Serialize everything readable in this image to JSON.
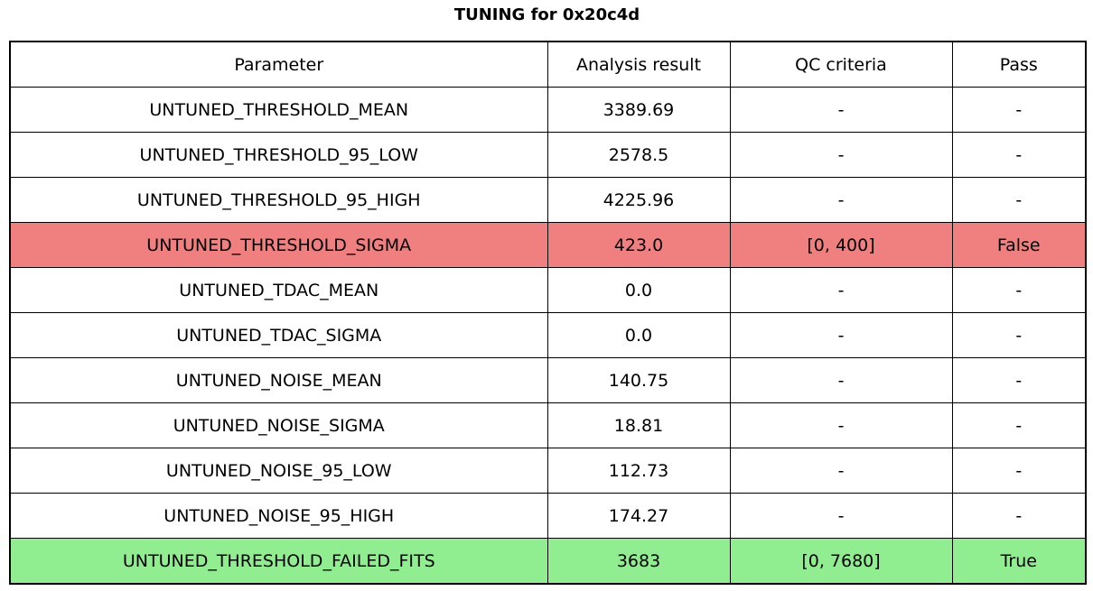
{
  "page_title": "TUNING for 0x20c4d",
  "colors": {
    "fail_row": "#F08080",
    "pass_row": "#90EE90",
    "border": "#000000",
    "background": "#FFFFFF"
  },
  "chart_data": {
    "type": "table",
    "title": "TUNING for 0x20c4d",
    "columns": [
      "Parameter",
      "Analysis result",
      "QC criteria",
      "Pass"
    ],
    "rows": [
      {
        "parameter": "UNTUNED_THRESHOLD_MEAN",
        "analysis_result": "3389.69",
        "qc_criteria": "-",
        "pass": "-",
        "status": "normal"
      },
      {
        "parameter": "UNTUNED_THRESHOLD_95_LOW",
        "analysis_result": "2578.5",
        "qc_criteria": "-",
        "pass": "-",
        "status": "normal"
      },
      {
        "parameter": "UNTUNED_THRESHOLD_95_HIGH",
        "analysis_result": "4225.96",
        "qc_criteria": "-",
        "pass": "-",
        "status": "normal"
      },
      {
        "parameter": "UNTUNED_THRESHOLD_SIGMA",
        "analysis_result": "423.0",
        "qc_criteria": "[0, 400]",
        "pass": "False",
        "status": "fail"
      },
      {
        "parameter": "UNTUNED_TDAC_MEAN",
        "analysis_result": "0.0",
        "qc_criteria": "-",
        "pass": "-",
        "status": "normal"
      },
      {
        "parameter": "UNTUNED_TDAC_SIGMA",
        "analysis_result": "0.0",
        "qc_criteria": "-",
        "pass": "-",
        "status": "normal"
      },
      {
        "parameter": "UNTUNED_NOISE_MEAN",
        "analysis_result": "140.75",
        "qc_criteria": "-",
        "pass": "-",
        "status": "normal"
      },
      {
        "parameter": "UNTUNED_NOISE_SIGMA",
        "analysis_result": "18.81",
        "qc_criteria": "-",
        "pass": "-",
        "status": "normal"
      },
      {
        "parameter": "UNTUNED_NOISE_95_LOW",
        "analysis_result": "112.73",
        "qc_criteria": "-",
        "pass": "-",
        "status": "normal"
      },
      {
        "parameter": "UNTUNED_NOISE_95_HIGH",
        "analysis_result": "174.27",
        "qc_criteria": "-",
        "pass": "-",
        "status": "normal"
      },
      {
        "parameter": "UNTUNED_THRESHOLD_FAILED_FITS",
        "analysis_result": "3683",
        "qc_criteria": "[0, 7680]",
        "pass": "True",
        "status": "pass"
      }
    ]
  }
}
